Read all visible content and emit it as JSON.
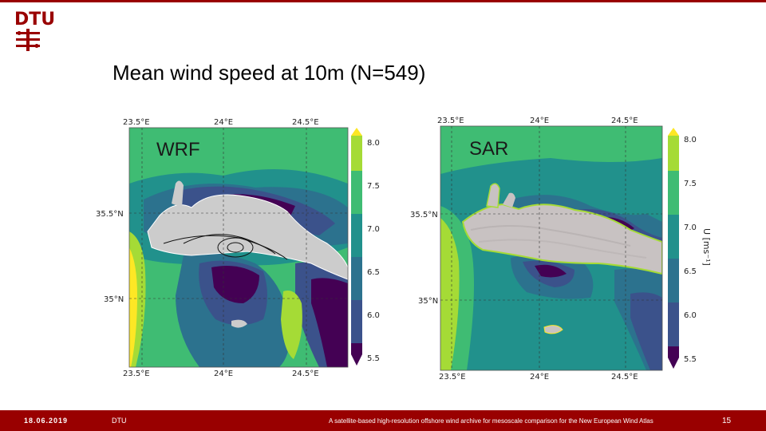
{
  "header": {
    "logo_text": "DTU",
    "brand_color": "#990000"
  },
  "slide": {
    "title": "Mean wind speed at 10m (N=549)"
  },
  "panels": [
    {
      "label": "WRF",
      "lon_ticks": [
        "23.5°E",
        "24°E",
        "24.5°E"
      ],
      "lat_ticks": [
        "35.5°N",
        "35°N"
      ]
    },
    {
      "label": "SAR",
      "lon_ticks": [
        "23.5°E",
        "24°E",
        "24.5°E"
      ],
      "lat_ticks": [
        "35.5°N",
        "35°N"
      ]
    }
  ],
  "colorbar": {
    "ticks": [
      "8.0",
      "7.5",
      "7.0",
      "6.5",
      "6.0",
      "5.5"
    ],
    "unit_label": "U [ms⁻¹]",
    "colors": [
      "#440154",
      "#3b528b",
      "#2c728e",
      "#21918c",
      "#3fbc73",
      "#a5db36",
      "#fde725"
    ]
  },
  "footer": {
    "date": "18.06.2019",
    "org": "DTU",
    "description": "A satellite-based high-resolution offshore wind archive for mesoscale comparison for the New European Wind Atlas",
    "page": "15"
  }
}
